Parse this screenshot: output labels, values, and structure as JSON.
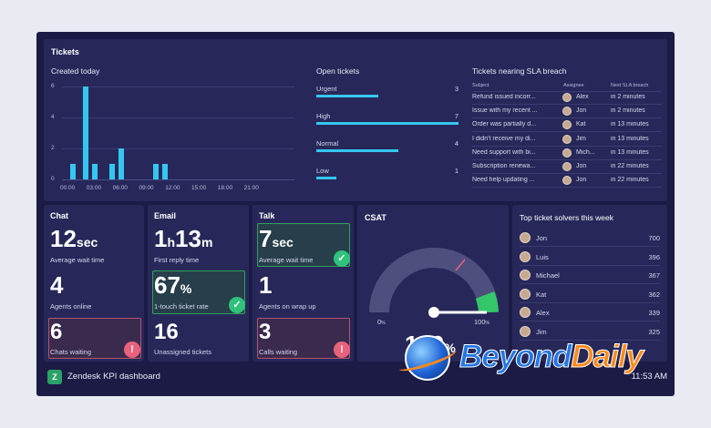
{
  "tickets": {
    "title": "Tickets",
    "created_today": {
      "title": "Created today",
      "y_ticks": [
        "6",
        "4",
        "2",
        "0"
      ],
      "x_ticks": [
        "00:00",
        "03:00",
        "06:00",
        "09:00",
        "12:00",
        "15:00",
        "18:00",
        "21:00"
      ]
    },
    "open_tickets": {
      "title": "Open tickets",
      "items": [
        {
          "label": "Urgent",
          "value": "3"
        },
        {
          "label": "High",
          "value": "7"
        },
        {
          "label": "Normal",
          "value": "4"
        },
        {
          "label": "Low",
          "value": "1"
        }
      ]
    },
    "sla": {
      "title": "Tickets nearing SLA breach",
      "headers": {
        "subject": "Subject",
        "assignee": "Assignee",
        "next": "Next SLA breach"
      },
      "rows": [
        {
          "subject": "Refund issued incorr...",
          "assignee": "Alex",
          "next": "in 2 minutes"
        },
        {
          "subject": "Issue with my recent ...",
          "assignee": "Jon",
          "next": "in 2 minutes"
        },
        {
          "subject": "Order was partially d...",
          "assignee": "Kat",
          "next": "in 13 minutes"
        },
        {
          "subject": "I didn't receive my di...",
          "assignee": "Jim",
          "next": "in 13 minutes"
        },
        {
          "subject": "Need support with bi...",
          "assignee": "Mich...",
          "next": "in 13 minutes"
        },
        {
          "subject": "Subscription renewa...",
          "assignee": "Jon",
          "next": "in 22 minutes"
        },
        {
          "subject": "Need help updating ...",
          "assignee": "Jon",
          "next": "in 22 minutes"
        }
      ]
    }
  },
  "chat": {
    "title": "Chat",
    "wait_value": "12",
    "wait_unit": "sec",
    "wait_label": "Average wait time",
    "agents_value": "4",
    "agents_label": "Agents online",
    "waiting_value": "6",
    "waiting_label": "Chats waiting"
  },
  "email": {
    "title": "Email",
    "reply_h": "1",
    "reply_h_unit": "h",
    "reply_m": "13",
    "reply_m_unit": "m",
    "reply_label": "First reply time",
    "touch_value": "67",
    "touch_unit": "%",
    "touch_label": "1-touch ticket rate",
    "unassigned_value": "16",
    "unassigned_label": "Unassigned tickets"
  },
  "talk": {
    "title": "Talk",
    "wait_value": "7",
    "wait_unit": "sec",
    "wait_label": "Average wait time",
    "wrap_value": "1",
    "wrap_label": "Agents on wrap up",
    "calls_value": "3",
    "calls_label": "Calls waiting"
  },
  "csat": {
    "title": "CSAT",
    "min_label": "0",
    "min_unit": "%",
    "max_label": "100",
    "max_unit": "%",
    "value": "100",
    "value_unit": "%"
  },
  "solvers": {
    "title": "Top ticket solvers this week",
    "items": [
      {
        "name": "Jon",
        "value": "700"
      },
      {
        "name": "Luis",
        "value": "396"
      },
      {
        "name": "Michael",
        "value": "367"
      },
      {
        "name": "Kat",
        "value": "362"
      },
      {
        "name": "Alex",
        "value": "339"
      },
      {
        "name": "Jim",
        "value": "325"
      }
    ]
  },
  "footer": {
    "title": "Zendesk KPI dashboard",
    "time": "11:53 AM"
  },
  "watermark": {
    "text_a": "Beyond",
    "text_b": "Daily"
  },
  "colors": {
    "accent": "#35c6f0",
    "good": "#30c17a",
    "alert": "#e8627b",
    "panel": "#272859"
  },
  "chart_data": {
    "type": "bar",
    "title": "Created today",
    "xlabel": "",
    "ylabel": "",
    "ylim": [
      0,
      6
    ],
    "x_ticks": [
      "00:00",
      "03:00",
      "06:00",
      "09:00",
      "12:00",
      "15:00",
      "18:00",
      "21:00"
    ],
    "series": [
      {
        "values": [
          {
            "hour": 0.5,
            "value": 1
          },
          {
            "hour": 2,
            "value": 6
          },
          {
            "hour": 3,
            "value": 1
          },
          {
            "hour": 5,
            "value": 1
          },
          {
            "hour": 6,
            "value": 2
          },
          {
            "hour": 10,
            "value": 1
          },
          {
            "hour": 11,
            "value": 1
          }
        ]
      }
    ]
  }
}
